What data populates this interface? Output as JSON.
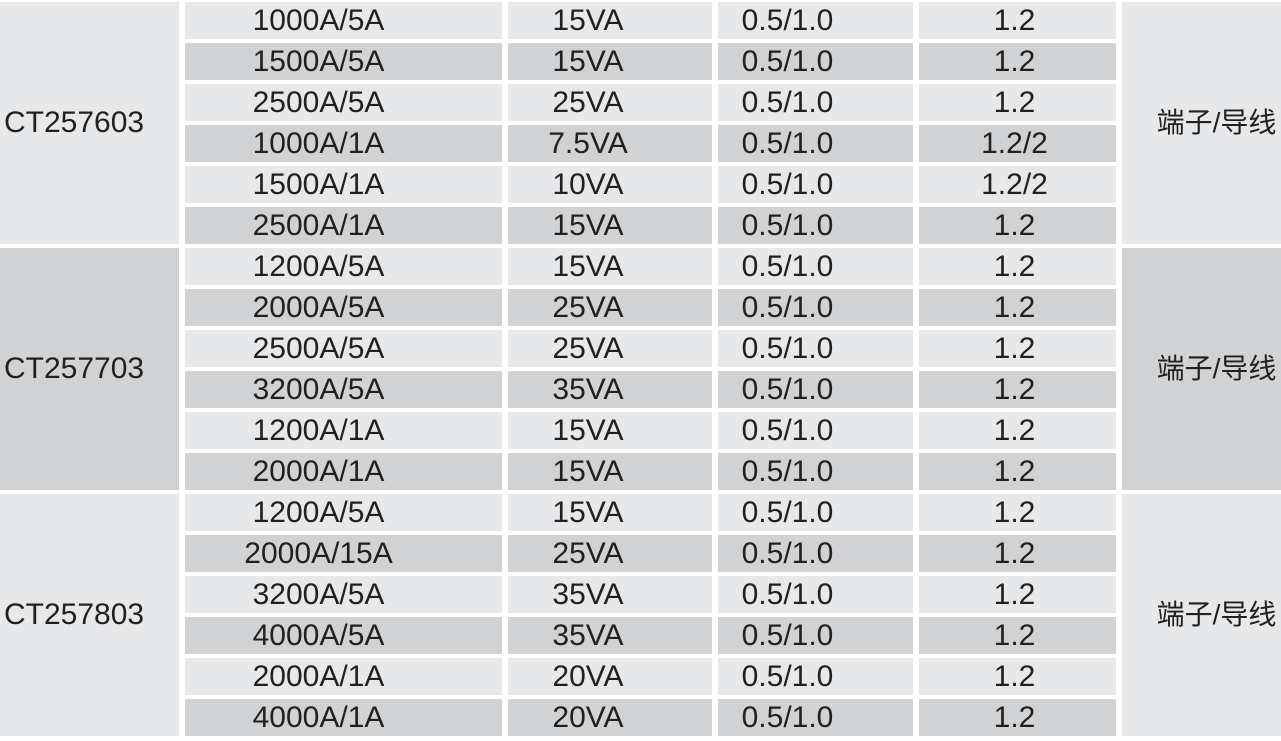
{
  "table": {
    "groups": [
      {
        "model": "CT257603",
        "termination": "端子/导线",
        "rows": [
          {
            "ratio": "1000A/5A",
            "burden": "15VA",
            "accuracy": "0.5/1.0",
            "ext_class": "1.2"
          },
          {
            "ratio": "1500A/5A",
            "burden": "15VA",
            "accuracy": "0.5/1.0",
            "ext_class": "1.2"
          },
          {
            "ratio": "2500A/5A",
            "burden": "25VA",
            "accuracy": "0.5/1.0",
            "ext_class": "1.2"
          },
          {
            "ratio": "1000A/1A",
            "burden": "7.5VA",
            "accuracy": "0.5/1.0",
            "ext_class": "1.2/2"
          },
          {
            "ratio": "1500A/1A",
            "burden": "10VA",
            "accuracy": "0.5/1.0",
            "ext_class": "1.2/2"
          },
          {
            "ratio": "2500A/1A",
            "burden": "15VA",
            "accuracy": "0.5/1.0",
            "ext_class": "1.2"
          }
        ]
      },
      {
        "model": "CT257703",
        "termination": "端子/导线",
        "rows": [
          {
            "ratio": "1200A/5A",
            "burden": "15VA",
            "accuracy": "0.5/1.0",
            "ext_class": "1.2"
          },
          {
            "ratio": "2000A/5A",
            "burden": "25VA",
            "accuracy": "0.5/1.0",
            "ext_class": "1.2"
          },
          {
            "ratio": "2500A/5A",
            "burden": "25VA",
            "accuracy": "0.5/1.0",
            "ext_class": "1.2"
          },
          {
            "ratio": "3200A/5A",
            "burden": "35VA",
            "accuracy": "0.5/1.0",
            "ext_class": "1.2"
          },
          {
            "ratio": "1200A/1A",
            "burden": "15VA",
            "accuracy": "0.5/1.0",
            "ext_class": "1.2"
          },
          {
            "ratio": "2000A/1A",
            "burden": "15VA",
            "accuracy": "0.5/1.0",
            "ext_class": "1.2"
          }
        ]
      },
      {
        "model": "CT257803",
        "termination": "端子/导线",
        "rows": [
          {
            "ratio": "1200A/5A",
            "burden": "15VA",
            "accuracy": "0.5/1.0",
            "ext_class": "1.2"
          },
          {
            "ratio": "2000A/15A",
            "burden": "25VA",
            "accuracy": "0.5/1.0",
            "ext_class": "1.2"
          },
          {
            "ratio": "3200A/5A",
            "burden": "35VA",
            "accuracy": "0.5/1.0",
            "ext_class": "1.2"
          },
          {
            "ratio": "4000A/5A",
            "burden": "35VA",
            "accuracy": "0.5/1.0",
            "ext_class": "1.2"
          },
          {
            "ratio": "2000A/1A",
            "burden": "20VA",
            "accuracy": "0.5/1.0",
            "ext_class": "1.2"
          },
          {
            "ratio": "4000A/1A",
            "burden": "20VA",
            "accuracy": "0.5/1.0",
            "ext_class": "1.2"
          }
        ]
      }
    ]
  },
  "colors": {
    "row_light": "#e7e8e9",
    "row_dark": "#d1d2d4",
    "text": "#231f20",
    "separator": "#ffffff"
  }
}
